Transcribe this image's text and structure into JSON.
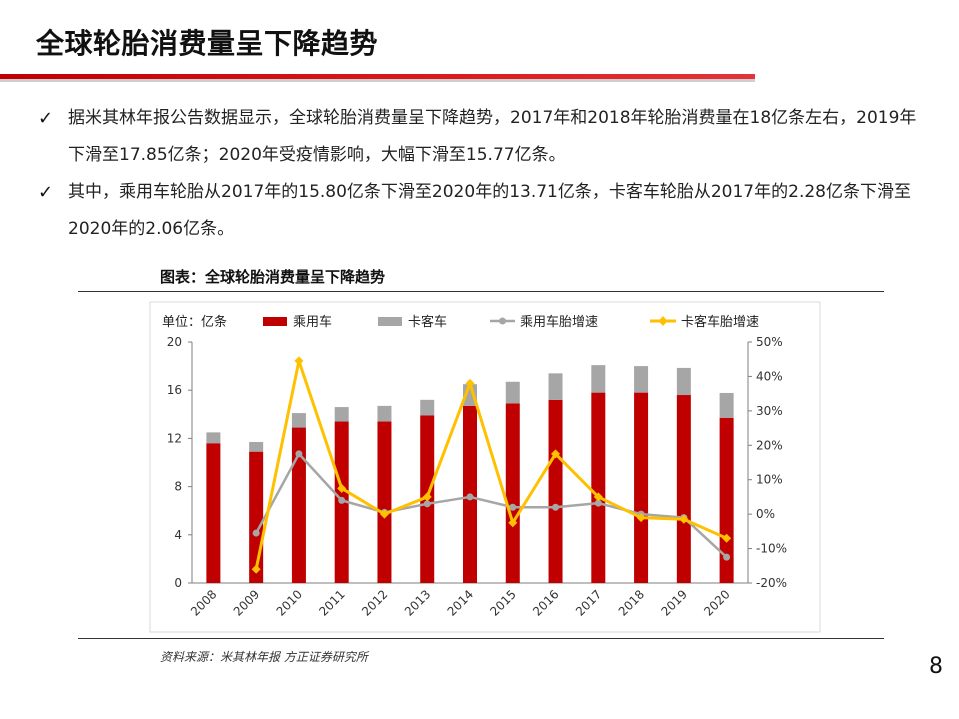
{
  "slide": {
    "title": "全球轮胎消费量呈下降趋势",
    "page_number": "8",
    "bullets": [
      {
        "check": "✓",
        "text": "据米其林年报公告数据显示，全球轮胎消费量呈下降趋势，2017年和2018年轮胎消费量在18亿条左右，2019年下滑至17.85亿条；2020年受疫情影响，大幅下滑至15.77亿条。"
      },
      {
        "check": "✓",
        "text": "其中，乘用车轮胎从2017年的15.80亿条下滑至2020年的13.71亿条，卡客车轮胎从2017年的2.28亿条下滑至2020年的2.06亿条。"
      }
    ],
    "figure_title": "图表：全球轮胎消费量呈下降趋势",
    "source": "资料来源：米其林年报  方正证券研究所"
  },
  "chart_data": {
    "type": "bar",
    "unit_label": "单位：亿条",
    "categories": [
      "2008",
      "2009",
      "2010",
      "2011",
      "2012",
      "2013",
      "2014",
      "2015",
      "2016",
      "2017",
      "2018",
      "2019",
      "2020"
    ],
    "stacked": true,
    "series": [
      {
        "name": "乘用车",
        "axis": "left",
        "color": "#c00000",
        "values": [
          11.6,
          10.9,
          12.9,
          13.4,
          13.4,
          13.9,
          14.7,
          14.9,
          15.2,
          15.8,
          15.8,
          15.6,
          13.71
        ]
      },
      {
        "name": "卡客车",
        "axis": "left",
        "color": "#a6a6a6",
        "values": [
          0.9,
          0.8,
          1.2,
          1.2,
          1.3,
          1.3,
          1.8,
          1.8,
          2.2,
          2.28,
          2.2,
          2.25,
          2.06
        ]
      },
      {
        "name": "乘用车胎增速",
        "type": "line",
        "axis": "right",
        "color": "#a6a6a6",
        "marker": "circle",
        "values": [
          null,
          -5.5,
          17.5,
          4.0,
          0.5,
          3.0,
          5.0,
          2.0,
          2.0,
          3.2,
          0.0,
          -1.0,
          -12.5
        ]
      },
      {
        "name": "卡客车胎增速",
        "type": "line",
        "axis": "right",
        "color": "#ffc000",
        "marker": "diamond",
        "values": [
          null,
          -16.0,
          44.5,
          7.5,
          0.0,
          5.0,
          38.0,
          -2.5,
          17.5,
          5.0,
          -1.0,
          -1.5,
          -7.0
        ]
      }
    ],
    "y_left": {
      "min": 0,
      "max": 20,
      "ticks": [
        "0",
        "4",
        "8",
        "12",
        "16",
        "20"
      ],
      "values": [
        0,
        4,
        8,
        12,
        16,
        20
      ]
    },
    "y_right": {
      "min": -20,
      "max": 50,
      "ticks": [
        "-20%",
        "-10%",
        "0%",
        "10%",
        "20%",
        "30%",
        "40%",
        "50%"
      ],
      "values": [
        -20,
        -10,
        0,
        10,
        20,
        30,
        40,
        50
      ]
    },
    "legend_position": "top",
    "grid": false
  }
}
